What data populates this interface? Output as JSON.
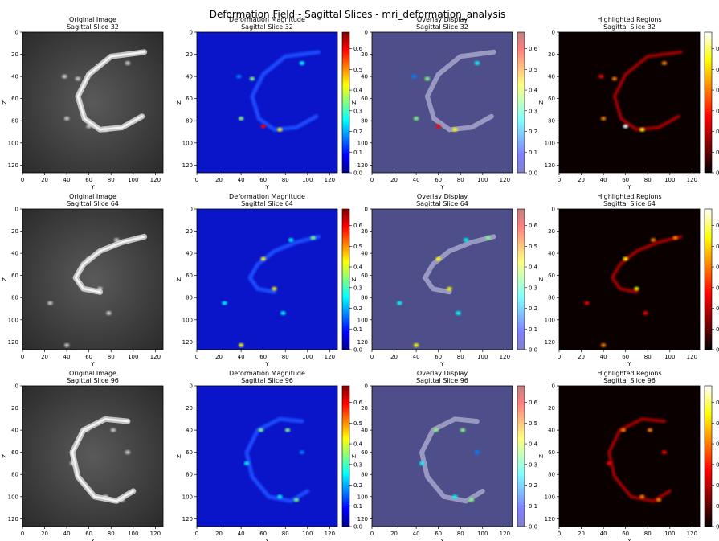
{
  "figure": {
    "title": "Deformation Field - Sagittal Slices - mri_deformation_analysis"
  },
  "panel_types": [
    {
      "key": "original",
      "title": "Original Image",
      "cmap": "gray",
      "colorbar": false
    },
    {
      "key": "magnitude",
      "title": "Deformation Magnitude",
      "cmap": "jet",
      "colorbar": true
    },
    {
      "key": "overlay",
      "title": "Overlay Display",
      "cmap": "jet-overlay",
      "colorbar": true
    },
    {
      "key": "highlight",
      "title": "Highlighted Regions",
      "cmap": "hot",
      "colorbar": true
    }
  ],
  "slices": [
    {
      "label": "Sagittal Slice 32",
      "index": 32
    },
    {
      "label": "Sagittal Slice 64",
      "index": 64
    },
    {
      "label": "Sagittal Slice 96",
      "index": 96
    }
  ],
  "colors": {
    "jet": [
      "#00008f",
      "#0000ff",
      "#0080ff",
      "#00ffff",
      "#80ff80",
      "#ffff00",
      "#ff8000",
      "#ff0000",
      "#800000"
    ],
    "hot": [
      "#000000",
      "#800000",
      "#ff0000",
      "#ff8000",
      "#ffff00",
      "#ffffff"
    ],
    "jet_overlay": [
      "#8080c8",
      "#8080ff",
      "#80c0ff",
      "#80ffff",
      "#c0ffc0",
      "#ffff80",
      "#ffc080",
      "#ff8080",
      "#c08080"
    ]
  },
  "chart_data": {
    "type": "heatmap",
    "title": "Deformation Field - Sagittal Slices - mri_deformation_analysis",
    "xlabel": "Y",
    "ylabel": "Z",
    "xlim": [
      0,
      127
    ],
    "ylim": [
      127,
      0
    ],
    "x_ticks": [
      0,
      20,
      40,
      60,
      80,
      100,
      120
    ],
    "y_ticks": [
      0,
      20,
      40,
      60,
      80,
      100,
      120
    ],
    "colorbar": {
      "range": [
        0.0,
        0.68
      ],
      "ticks": [
        "0.0",
        "0.1",
        "0.2",
        "0.3",
        "0.4",
        "0.5",
        "0.6"
      ],
      "tick_values": [
        0.0,
        0.1,
        0.2,
        0.3,
        0.4,
        0.5,
        0.6
      ]
    },
    "structures": [
      {
        "slice": 32,
        "arc": [
          [
            110,
            18
          ],
          [
            80,
            22
          ],
          [
            60,
            38
          ],
          [
            50,
            58
          ],
          [
            56,
            78
          ],
          [
            70,
            88
          ],
          [
            90,
            86
          ],
          [
            108,
            76
          ]
        ],
        "hotspots": [
          {
            "y": 60,
            "z": 85,
            "value": 0.62
          },
          {
            "y": 75,
            "z": 88,
            "value": 0.45
          },
          {
            "y": 40,
            "z": 78,
            "value": 0.3
          },
          {
            "y": 50,
            "z": 42,
            "value": 0.3
          },
          {
            "y": 95,
            "z": 28,
            "value": 0.28
          },
          {
            "y": 38,
            "z": 40,
            "value": 0.2
          }
        ]
      },
      {
        "slice": 64,
        "arc": [
          [
            110,
            25
          ],
          [
            90,
            30
          ],
          [
            70,
            38
          ],
          [
            55,
            50
          ],
          [
            48,
            62
          ],
          [
            55,
            72
          ],
          [
            70,
            75
          ]
        ],
        "hotspots": [
          {
            "y": 60,
            "z": 45,
            "value": 0.45
          },
          {
            "y": 70,
            "z": 72,
            "value": 0.45
          },
          {
            "y": 40,
            "z": 123,
            "value": 0.4
          },
          {
            "y": 25,
            "z": 85,
            "value": 0.25
          },
          {
            "y": 78,
            "z": 94,
            "value": 0.22
          },
          {
            "y": 85,
            "z": 28,
            "value": 0.28
          },
          {
            "y": 105,
            "z": 26,
            "value": 0.3
          }
        ]
      },
      {
        "slice": 96,
        "arc": [
          [
            95,
            32
          ],
          [
            75,
            30
          ],
          [
            55,
            40
          ],
          [
            45,
            60
          ],
          [
            50,
            82
          ],
          [
            65,
            100
          ],
          [
            85,
            104
          ],
          [
            100,
            95
          ]
        ],
        "hotspots": [
          {
            "y": 58,
            "z": 40,
            "value": 0.3
          },
          {
            "y": 82,
            "z": 40,
            "value": 0.35
          },
          {
            "y": 90,
            "z": 103,
            "value": 0.35
          },
          {
            "y": 75,
            "z": 100,
            "value": 0.28
          },
          {
            "y": 45,
            "z": 70,
            "value": 0.22
          },
          {
            "y": 95,
            "z": 60,
            "value": 0.18
          }
        ]
      }
    ]
  }
}
